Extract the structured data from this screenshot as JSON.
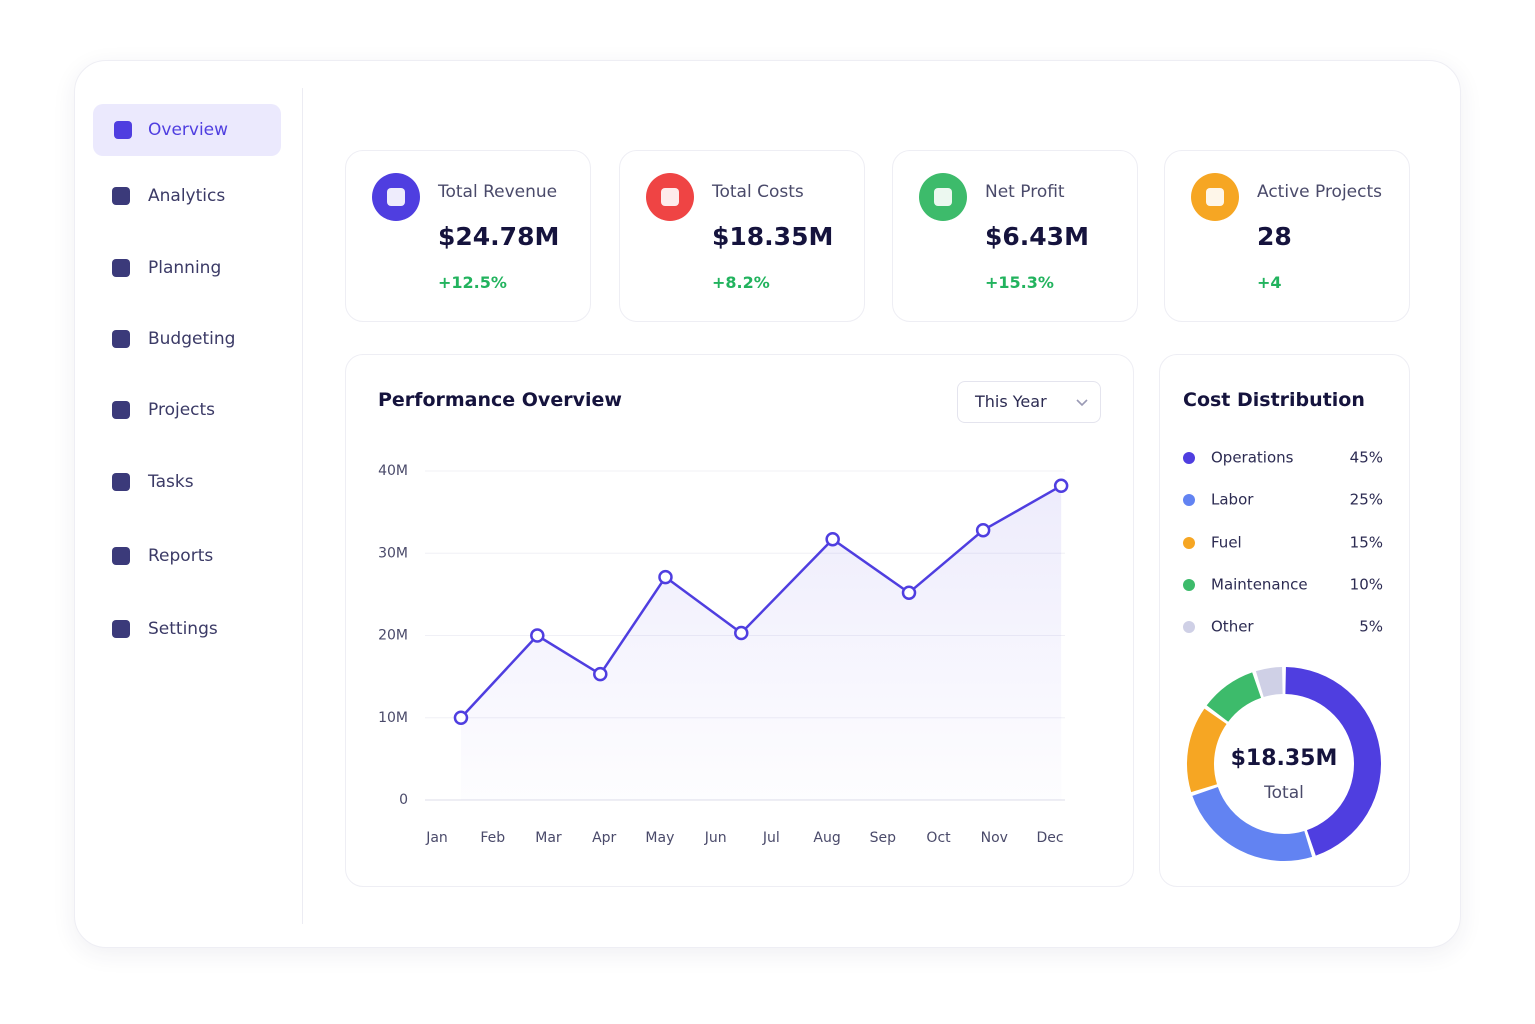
{
  "nav": [
    {
      "label": "Overview",
      "active": true
    },
    {
      "label": "Analytics"
    },
    {
      "label": "Planning"
    },
    {
      "label": "Budgeting"
    },
    {
      "label": "Projects"
    },
    {
      "label": "Tasks"
    },
    {
      "label": "Reports"
    },
    {
      "label": "Settings"
    }
  ],
  "cards": [
    {
      "title": "Total Revenue",
      "value": "$24.78M",
      "change": "+12.5%",
      "color": "#4f3ee0"
    },
    {
      "title": "Total Costs",
      "value": "$18.35M",
      "change": "+8.2%",
      "color": "#ef4444"
    },
    {
      "title": "Net Profit",
      "value": "$6.43M",
      "change": "+15.3%",
      "color": "#3dbb6b"
    },
    {
      "title": "Active Projects",
      "value": "28",
      "change": "+4",
      "color": "#f6a623"
    }
  ],
  "chart_data": [
    {
      "type": "line",
      "title": "Performance Overview",
      "filter": "This Year",
      "x": [
        1.43,
        2.8,
        3.93,
        5.1,
        6.46,
        8.1,
        9.47,
        10.8,
        12.2
      ],
      "values": [
        10,
        20,
        15.3,
        27.1,
        20.3,
        31.7,
        25.2,
        32.8,
        38.2
      ],
      "color": "#4f3ee0",
      "xlim": [
        0.8,
        12.3
      ],
      "xticks": [
        {
          "value": 1,
          "label": "Jan"
        },
        {
          "value": 2,
          "label": "Feb"
        },
        {
          "value": 3,
          "label": "Mar"
        },
        {
          "value": 4,
          "label": "Apr"
        },
        {
          "value": 5,
          "label": "May"
        },
        {
          "value": 6,
          "label": "Jun"
        },
        {
          "value": 7,
          "label": "Jul"
        },
        {
          "value": 8,
          "label": "Aug"
        },
        {
          "value": 9,
          "label": "Sep"
        },
        {
          "value": 10,
          "label": "Oct"
        },
        {
          "value": 11,
          "label": "Nov"
        },
        {
          "value": 12,
          "label": "Dec"
        }
      ],
      "ylim": [
        0,
        40
      ],
      "yticks": [
        0,
        {
          "value": 10,
          "label": "10M"
        },
        {
          "value": 20,
          "label": "20M"
        },
        {
          "value": 30,
          "label": "30M"
        },
        {
          "value": 40,
          "label": "40M"
        }
      ],
      "grid": true
    },
    {
      "type": "donut",
      "title": "Cost Distribution",
      "categories": [
        "Operations",
        "Labor",
        "Fuel",
        "Maintenance",
        "Other"
      ],
      "values": [
        45,
        25,
        15,
        10,
        5
      ],
      "value_labels": [
        "45%",
        "25%",
        "15%",
        "10%",
        "5%"
      ],
      "colors": [
        "#4f3ee0",
        "#6283f2",
        "#f6a623",
        "#3dbb6b",
        "#cfd0e6"
      ],
      "center_value": "$18.35M",
      "center_label": "Total"
    }
  ]
}
